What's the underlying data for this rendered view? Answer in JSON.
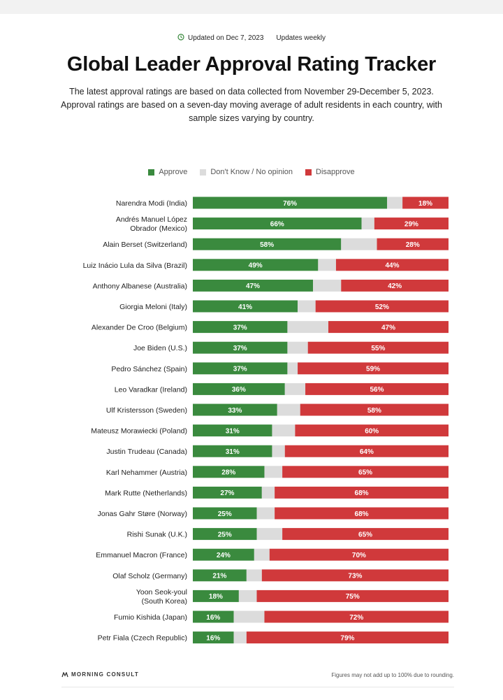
{
  "header": {
    "updated": "Updated on Dec 7, 2023",
    "frequency": "Updates weekly"
  },
  "title": "Global Leader Approval Rating Tracker",
  "description": "The latest approval ratings are based on data collected from November 29-December 5, 2023. Approval ratings are based on a seven-day moving average of adult residents in each country, with sample sizes varying by country.",
  "legend": {
    "approve": "Approve",
    "dont_know": "Don't Know / No opinion",
    "disapprove": "Disapprove"
  },
  "colors": {
    "approve": "#3a8a3e",
    "dont_know": "#dcdcdc",
    "disapprove": "#d0393b"
  },
  "chart_data": {
    "type": "bar",
    "orientation": "horizontal",
    "stacked": true,
    "categories": [
      [
        "Narendra Modi (India)"
      ],
      [
        "Andrés Manuel López",
        "Obrador (Mexico)"
      ],
      [
        "Alain Berset (Switzerland)"
      ],
      [
        "Luiz Inácio Lula da Silva (Brazil)"
      ],
      [
        "Anthony Albanese (Australia)"
      ],
      [
        "Giorgia Meloni (Italy)"
      ],
      [
        "Alexander De Croo (Belgium)"
      ],
      [
        "Joe Biden (U.S.)"
      ],
      [
        "Pedro Sánchez (Spain)"
      ],
      [
        "Leo Varadkar (Ireland)"
      ],
      [
        "Ulf Kristersson (Sweden)"
      ],
      [
        "Mateusz Morawiecki (Poland)"
      ],
      [
        "Justin Trudeau (Canada)"
      ],
      [
        "Karl Nehammer (Austria)"
      ],
      [
        "Mark Rutte (Netherlands)"
      ],
      [
        "Jonas Gahr Støre (Norway)"
      ],
      [
        "Rishi Sunak (U.K.)"
      ],
      [
        "Emmanuel Macron (France)"
      ],
      [
        "Olaf Scholz (Germany)"
      ],
      [
        "Yoon Seok-youl",
        "(South Korea)"
      ],
      [
        "Fumio Kishida (Japan)"
      ],
      [
        "Petr Fiala (Czech Republic)"
      ]
    ],
    "series": [
      {
        "name": "Approve",
        "values": [
          76,
          66,
          58,
          49,
          47,
          41,
          37,
          37,
          37,
          36,
          33,
          31,
          31,
          28,
          27,
          25,
          25,
          24,
          21,
          18,
          16,
          16
        ]
      },
      {
        "name": "Don't Know / No opinion",
        "values": [
          6,
          5,
          14,
          7,
          11,
          7,
          16,
          8,
          4,
          8,
          9,
          9,
          5,
          7,
          5,
          7,
          10,
          6,
          6,
          7,
          12,
          5
        ]
      },
      {
        "name": "Disapprove",
        "values": [
          18,
          29,
          28,
          44,
          42,
          52,
          47,
          55,
          59,
          56,
          58,
          60,
          64,
          65,
          68,
          68,
          65,
          70,
          73,
          75,
          72,
          79
        ]
      }
    ],
    "data_labels": {
      "approve": [
        "76%",
        "66%",
        "58%",
        "49%",
        "47%",
        "41%",
        "37%",
        "37%",
        "37%",
        "36%",
        "33%",
        "31%",
        "31%",
        "28%",
        "27%",
        "25%",
        "25%",
        "24%",
        "21%",
        "18%",
        "16%",
        "16%"
      ],
      "disapprove": [
        "18%",
        "29%",
        "28%",
        "44%",
        "42%",
        "52%",
        "47%",
        "55%",
        "59%",
        "56%",
        "58%",
        "60%",
        "64%",
        "65%",
        "68%",
        "68%",
        "65%",
        "70%",
        "73%",
        "75%",
        "72%",
        "79%"
      ]
    },
    "xlim": [
      0,
      100
    ]
  },
  "footer": {
    "logo": "MORNING CONSULT",
    "note": "Figures may not add up to 100% due to rounding."
  }
}
